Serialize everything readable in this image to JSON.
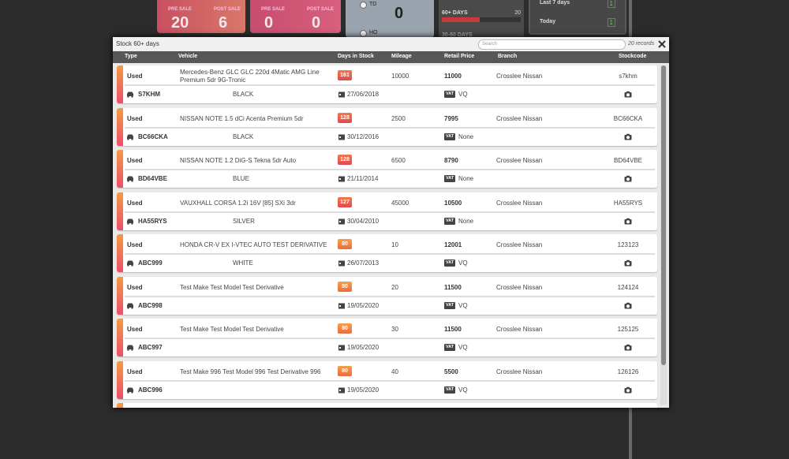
{
  "dashboard": {
    "sale_tiles": [
      {
        "labels": [
          "PRE SALE",
          "POST SALE"
        ],
        "values": [
          "20",
          "6"
        ]
      },
      {
        "labels": [
          "PRE SALE",
          "POST SALE"
        ],
        "values": [
          "0",
          "0"
        ]
      }
    ],
    "status_tile": {
      "items": [
        "TD",
        "HO"
      ],
      "value": "0"
    },
    "age_tile": {
      "label": "60+ DAYS",
      "value": "20",
      "next_label": "30-60 DAYS"
    },
    "recent": [
      {
        "label": "Last 7 days",
        "value": "1"
      },
      {
        "label": "Today",
        "value": "1"
      }
    ]
  },
  "modal": {
    "title": "Stock 60+ days",
    "search_placeholder": "Search",
    "record_count": "20 records",
    "columns": [
      "Type",
      "Vehicle",
      "Days in Stock",
      "Mileage",
      "Retail Price",
      "Branch",
      "Stockcode"
    ],
    "vat_badge": "VAT",
    "rows": [
      {
        "type": "Used",
        "vehicle": "Mercedes-Benz GLC GLC 220d 4Matic AMG Line Premium 5dr 9G-Tronic",
        "days": "161",
        "mileage": "10000",
        "price": "11000",
        "branch": "Crosslee Nissan",
        "stockcode": "s7khm",
        "reg": "S7KHM",
        "colour": "BLACK",
        "date": "27/06/2018",
        "vat": "VQ"
      },
      {
        "type": "Used",
        "vehicle": "NISSAN NOTE 1.5 dCi Acenta Premium 5dr",
        "days": "128",
        "mileage": "2500",
        "price": "7995",
        "branch": "Crosslee Nissan",
        "stockcode": "BC66CKA",
        "reg": "BC66CKA",
        "colour": "BLACK",
        "date": "30/12/2016",
        "vat": "None"
      },
      {
        "type": "Used",
        "vehicle": "NISSAN NOTE 1.2 DiG-S Tekna 5dr Auto",
        "days": "128",
        "mileage": "6500",
        "price": "8790",
        "branch": "Crosslee Nissan",
        "stockcode": "BD64VBE",
        "reg": "BD64VBE",
        "colour": "BLUE",
        "date": "21/11/2014",
        "vat": "None"
      },
      {
        "type": "Used",
        "vehicle": "VAUXHALL CORSA 1.2i 16V [85] SXi 3dr",
        "days": "127",
        "mileage": "45000",
        "price": "10500",
        "branch": "Crosslee Nissan",
        "stockcode": "HA55RYS",
        "reg": "HA55RYS",
        "colour": "SILVER",
        "date": "30/04/2010",
        "vat": "None"
      },
      {
        "type": "Used",
        "vehicle": "HONDA CR-V EX I-VTEC AUTO TEST DERIVATIVE",
        "days": "80",
        "mileage": "10",
        "price": "12001",
        "branch": "Crosslee Nissan",
        "stockcode": "123123",
        "reg": "ABC999",
        "colour": "WHITE",
        "date": "26/07/2013",
        "vat": "VQ"
      },
      {
        "type": "Used",
        "vehicle": "Test Make Test Model Test Derivative",
        "days": "80",
        "mileage": "20",
        "price": "11500",
        "branch": "Crosslee Nissan",
        "stockcode": "124124",
        "reg": "ABC998",
        "colour": null,
        "date": "19/05/2020",
        "vat": "VQ"
      },
      {
        "type": "Used",
        "vehicle": "Test Make Test Model Test Derivative",
        "days": "80",
        "mileage": "30",
        "price": "11500",
        "branch": "Crosslee Nissan",
        "stockcode": "125125",
        "reg": "ABC997",
        "colour": null,
        "date": "19/05/2020",
        "vat": "VQ"
      },
      {
        "type": "Used",
        "vehicle": "Test Make 996 Test Model 996 Test Derivative 996",
        "days": "80",
        "mileage": "40",
        "price": "5500",
        "branch": "Crosslee Nissan",
        "stockcode": "126126",
        "reg": "ABC996",
        "colour": null,
        "date": "19/05/2020",
        "vat": "VQ"
      }
    ]
  }
}
